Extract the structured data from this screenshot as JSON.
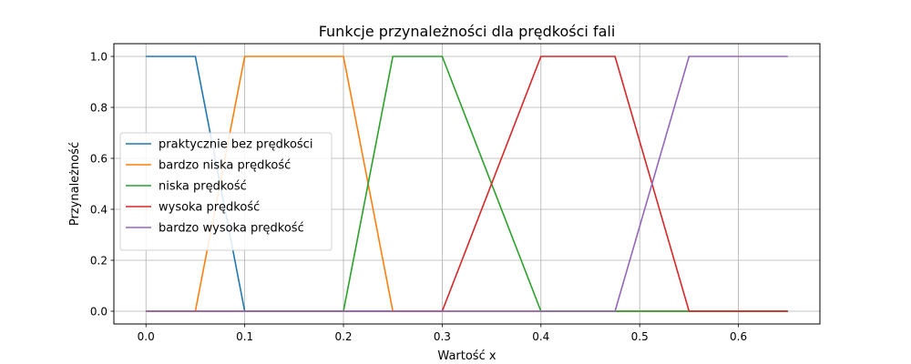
{
  "chart_data": {
    "type": "line",
    "title": "Funkcje przynależności dla prędkości fali",
    "xlabel": "Wartość x",
    "ylabel": "Przynależność",
    "xlim": [
      -0.0325,
      0.6825
    ],
    "ylim": [
      -0.05,
      1.05
    ],
    "xticks": [
      0.0,
      0.1,
      0.2,
      0.3,
      0.4,
      0.5,
      0.6
    ],
    "xtick_labels": [
      "0.0",
      "0.1",
      "0.2",
      "0.3",
      "0.4",
      "0.5",
      "0.6"
    ],
    "yticks": [
      0.0,
      0.2,
      0.4,
      0.6,
      0.8,
      1.0
    ],
    "ytick_labels": [
      "0.0",
      "0.2",
      "0.4",
      "0.6",
      "0.8",
      "1.0"
    ],
    "grid": true,
    "legend_position": "center-left",
    "series": [
      {
        "name": "praktycznie bez prędkości",
        "color": "#1f77b4",
        "x": [
          0,
          0.05,
          0.1,
          0.65
        ],
        "y": [
          1,
          1,
          0,
          0
        ]
      },
      {
        "name": "bardzo niska prędkość",
        "color": "#ff7f0e",
        "x": [
          0,
          0.05,
          0.1,
          0.2,
          0.25,
          0.65
        ],
        "y": [
          0,
          0,
          1,
          1,
          0,
          0
        ]
      },
      {
        "name": "niska prędkość",
        "color": "#2ca02c",
        "x": [
          0,
          0.2,
          0.25,
          0.3,
          0.4,
          0.65
        ],
        "y": [
          0,
          0,
          1,
          1,
          0,
          0
        ]
      },
      {
        "name": "wysoka prędkość",
        "color": "#d62728",
        "x": [
          0,
          0.3,
          0.4,
          0.475,
          0.55,
          0.65
        ],
        "y": [
          0,
          0,
          1,
          1,
          0,
          0
        ]
      },
      {
        "name": "bardzo wysoka prędkość",
        "color": "#9467bd",
        "x": [
          0,
          0.475,
          0.55,
          0.65
        ],
        "y": [
          0,
          0,
          1,
          1
        ]
      }
    ]
  }
}
